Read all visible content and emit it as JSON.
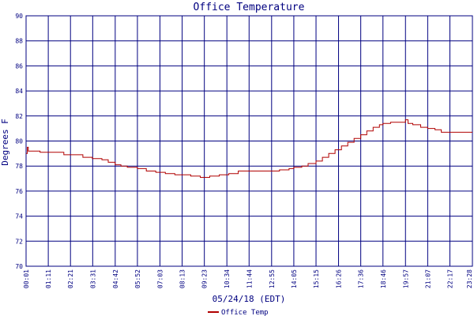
{
  "chart_data": {
    "type": "line",
    "title": "Office Temperature",
    "xlabel": "05/24/18 (EDT)",
    "ylabel": "Degrees F",
    "ylim": [
      70,
      90
    ],
    "yticks": [
      70,
      72,
      74,
      76,
      78,
      80,
      82,
      84,
      86,
      88,
      90
    ],
    "x_tick_labels": [
      "00:01",
      "01:11",
      "02:21",
      "03:31",
      "04:42",
      "05:52",
      "07:03",
      "08:13",
      "09:23",
      "10:34",
      "11:44",
      "12:55",
      "14:05",
      "15:15",
      "16:26",
      "17:36",
      "18:46",
      "19:57",
      "21:07",
      "22:17",
      "23:28"
    ],
    "x_range": [
      "00:01",
      "23:28"
    ],
    "grid": true,
    "legend_position": "bottom",
    "colors": {
      "series": "#b00000",
      "grid": "#000080",
      "text": "#000080",
      "background": "#ffffff"
    },
    "series": [
      {
        "name": "Office Temp",
        "x": [
          "00:01",
          "00:05",
          "00:08",
          "00:30",
          "00:45",
          "01:30",
          "02:00",
          "02:30",
          "03:00",
          "03:30",
          "04:00",
          "04:20",
          "04:42",
          "05:00",
          "05:20",
          "05:52",
          "06:20",
          "06:50",
          "07:20",
          "07:50",
          "08:13",
          "08:40",
          "09:10",
          "09:40",
          "10:10",
          "10:40",
          "11:10",
          "11:44",
          "12:20",
          "12:55",
          "13:20",
          "13:50",
          "14:05",
          "14:30",
          "14:50",
          "15:15",
          "15:35",
          "15:55",
          "16:15",
          "16:35",
          "16:55",
          "17:15",
          "17:36",
          "17:55",
          "18:15",
          "18:35",
          "18:46",
          "19:10",
          "19:35",
          "19:50",
          "19:57",
          "20:05",
          "20:20",
          "20:45",
          "21:07",
          "21:30",
          "21:50",
          "22:17",
          "22:45",
          "23:28"
        ],
        "values": [
          79.0,
          79.5,
          79.2,
          79.2,
          79.1,
          79.1,
          78.9,
          78.9,
          78.7,
          78.6,
          78.5,
          78.3,
          78.1,
          78.0,
          77.9,
          77.8,
          77.6,
          77.5,
          77.4,
          77.3,
          77.3,
          77.2,
          77.1,
          77.2,
          77.3,
          77.4,
          77.6,
          77.6,
          77.6,
          77.6,
          77.7,
          77.8,
          77.9,
          78.0,
          78.2,
          78.4,
          78.7,
          79.0,
          79.3,
          79.6,
          79.9,
          80.2,
          80.5,
          80.8,
          81.1,
          81.3,
          81.4,
          81.5,
          81.5,
          81.5,
          81.7,
          81.4,
          81.3,
          81.1,
          81.0,
          80.9,
          80.7,
          80.7,
          80.7,
          80.7
        ]
      }
    ]
  }
}
